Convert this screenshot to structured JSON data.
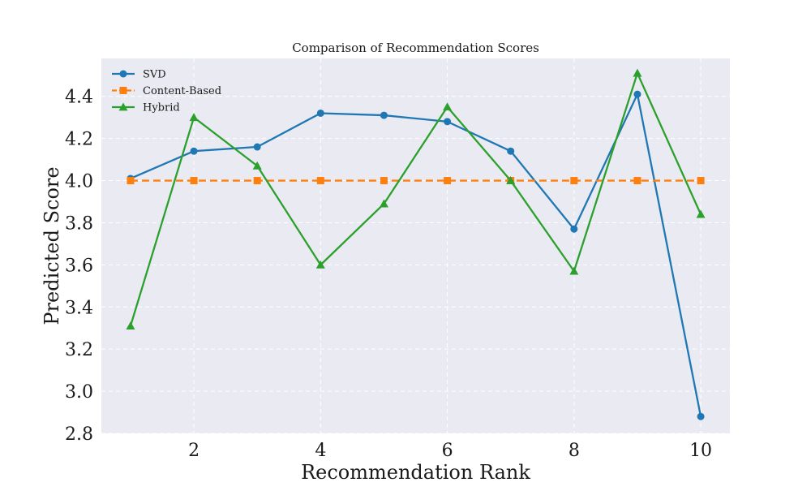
{
  "chart_data": {
    "type": "line",
    "title": "Comparison of Recommendation Scores",
    "xlabel": "Recommendation Rank",
    "ylabel": "Predicted Score",
    "x": [
      1,
      2,
      3,
      4,
      5,
      6,
      7,
      8,
      9,
      10
    ],
    "xlim": [
      0.54,
      10.46
    ],
    "ylim": [
      2.8,
      4.58
    ],
    "xticks": [
      2,
      4,
      6,
      8,
      10
    ],
    "yticks": [
      2.8,
      3.0,
      3.2,
      3.4,
      3.6,
      3.8,
      4.0,
      4.2,
      4.4
    ],
    "ytick_labels": [
      "2.8",
      "3.0",
      "3.2",
      "3.4",
      "3.6",
      "3.8",
      "4.0",
      "4.2",
      "4.4"
    ],
    "grid": true,
    "grid_style": "dashed",
    "legend_position": "top-left",
    "colors": {
      "plot_background": "#eaeaf2",
      "grid": "#ffffff"
    },
    "series": [
      {
        "name": "SVD",
        "color": "#1f77b4",
        "marker": "circle",
        "line_style": "solid",
        "values": [
          4.01,
          4.14,
          4.16,
          4.32,
          4.31,
          4.28,
          4.14,
          3.77,
          4.41,
          2.88
        ]
      },
      {
        "name": "Content-Based",
        "color": "#ff7f0e",
        "marker": "square",
        "line_style": "dashed",
        "values": [
          4.0,
          4.0,
          4.0,
          4.0,
          4.0,
          4.0,
          4.0,
          4.0,
          4.0,
          4.0
        ]
      },
      {
        "name": "Hybrid",
        "color": "#2ca02c",
        "marker": "triangle",
        "line_style": "solid",
        "values": [
          3.31,
          4.3,
          4.07,
          3.6,
          3.89,
          4.35,
          4.0,
          3.57,
          4.51,
          3.84
        ]
      }
    ]
  }
}
